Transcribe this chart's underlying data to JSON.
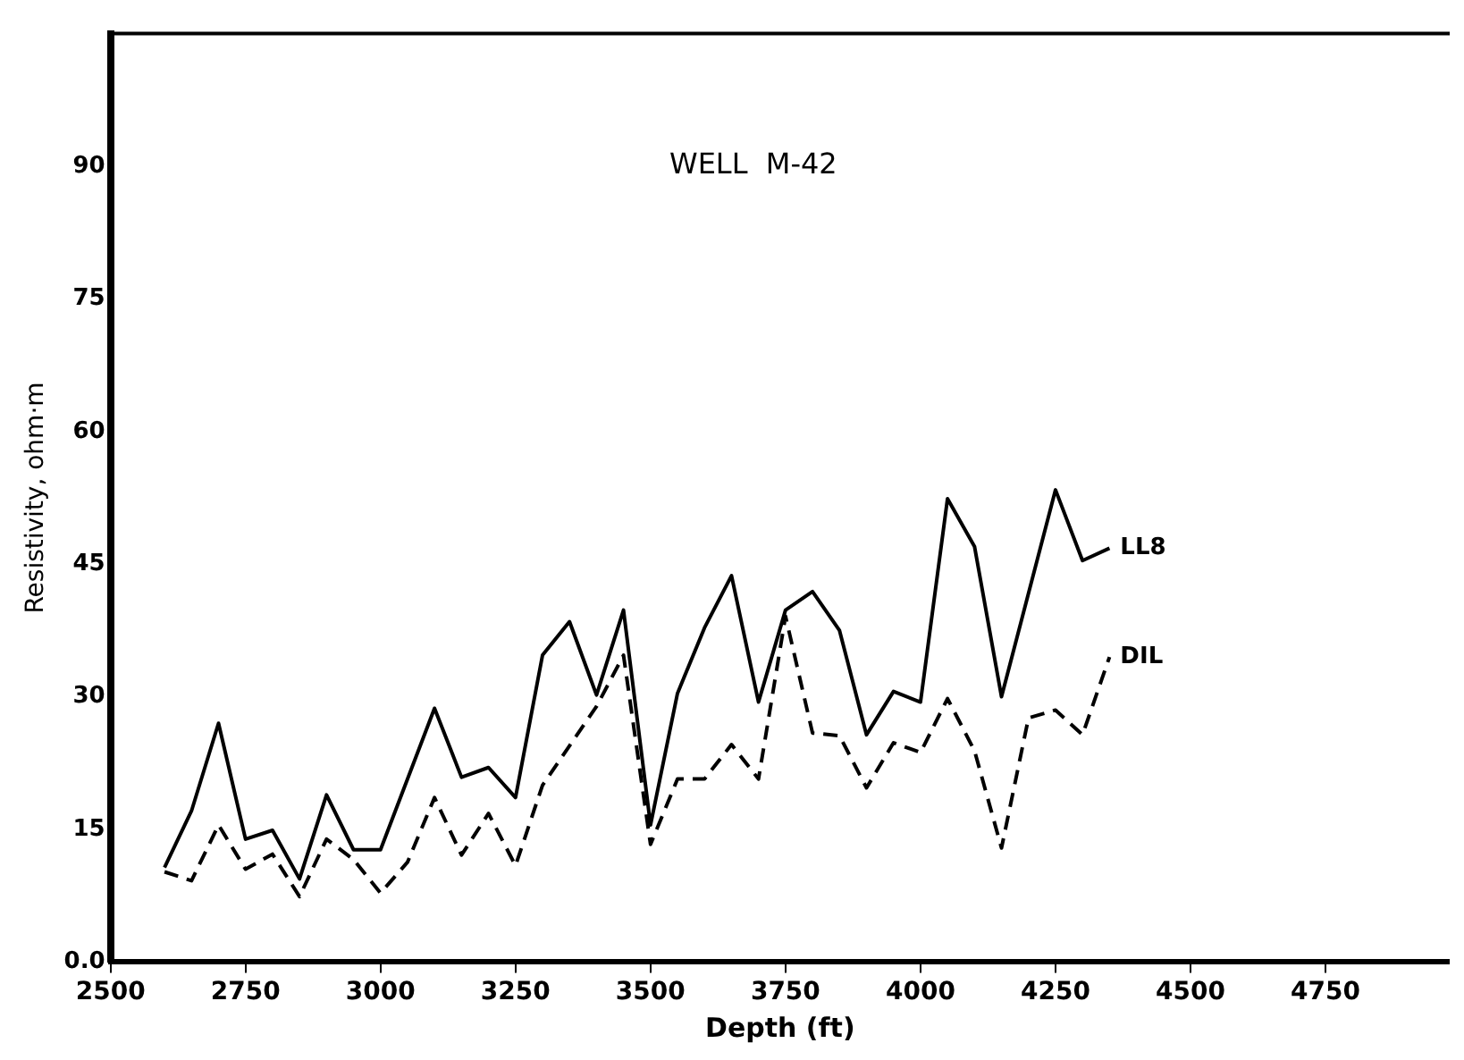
{
  "chart_data": {
    "type": "line",
    "title": "WELL  M-42",
    "xlabel": "Depth (ft)",
    "ylabel": "Resistivity, ohm·m",
    "xlim": [
      2500,
      4980
    ],
    "xticks": [
      2500,
      2750,
      3000,
      3250,
      3500,
      3750,
      4000,
      4250,
      4500,
      4750
    ],
    "ylim": [
      0,
      105
    ],
    "yticks": [
      {
        "value": 0,
        "label": "0.0"
      },
      15,
      30,
      45,
      60,
      75,
      90
    ],
    "grid": false,
    "legend": false,
    "marker": "none",
    "series": [
      {
        "name": "LL8",
        "color": "#000000",
        "line_style": "solid",
        "x": [
          2600,
          2650,
          2700,
          2750,
          2800,
          2850,
          2900,
          2950,
          3000,
          3100,
          3150,
          3200,
          3250,
          3300,
          3350,
          3400,
          3450,
          3500,
          3550,
          3600,
          3650,
          3700,
          3750,
          3800,
          3850,
          3900,
          3950,
          4000,
          4050,
          4100,
          4150,
          4250,
          4300,
          4350
        ],
        "values": [
          10.7,
          17.1,
          27,
          13.9,
          14.9,
          9.4,
          18.9,
          12.7,
          12.7,
          28.7,
          20.9,
          22,
          18.6,
          34.7,
          38.5,
          30.2,
          39.8,
          15.5,
          30.4,
          37.8,
          43.7,
          29.4,
          39.8,
          41.9,
          37.5,
          25.7,
          30.6,
          29.4,
          52.4,
          47,
          30,
          53.4,
          45.4,
          46.8
        ]
      },
      {
        "name": "DIL",
        "color": "#000000",
        "line_style": "dashed",
        "x": [
          2600,
          2650,
          2700,
          2750,
          2800,
          2850,
          2900,
          2950,
          3000,
          3050,
          3100,
          3150,
          3200,
          3250,
          3300,
          3400,
          3450,
          3500,
          3550,
          3600,
          3650,
          3700,
          3750,
          3800,
          3850,
          3900,
          3950,
          4000,
          4050,
          4100,
          4150,
          4200,
          4250,
          4300,
          4350
        ],
        "values": [
          10.2,
          9.2,
          15.5,
          10.5,
          12.2,
          7.4,
          13.9,
          11.6,
          7.8,
          11.3,
          18.6,
          12.1,
          16.8,
          10.9,
          20,
          28.9,
          34.7,
          13.3,
          20.7,
          20.7,
          24.6,
          20.7,
          39.1,
          25.9,
          25.6,
          19.7,
          24.8,
          23.7,
          29.8,
          23.9,
          12.9,
          27.6,
          28.5,
          25.7,
          34.5
        ]
      }
    ]
  }
}
